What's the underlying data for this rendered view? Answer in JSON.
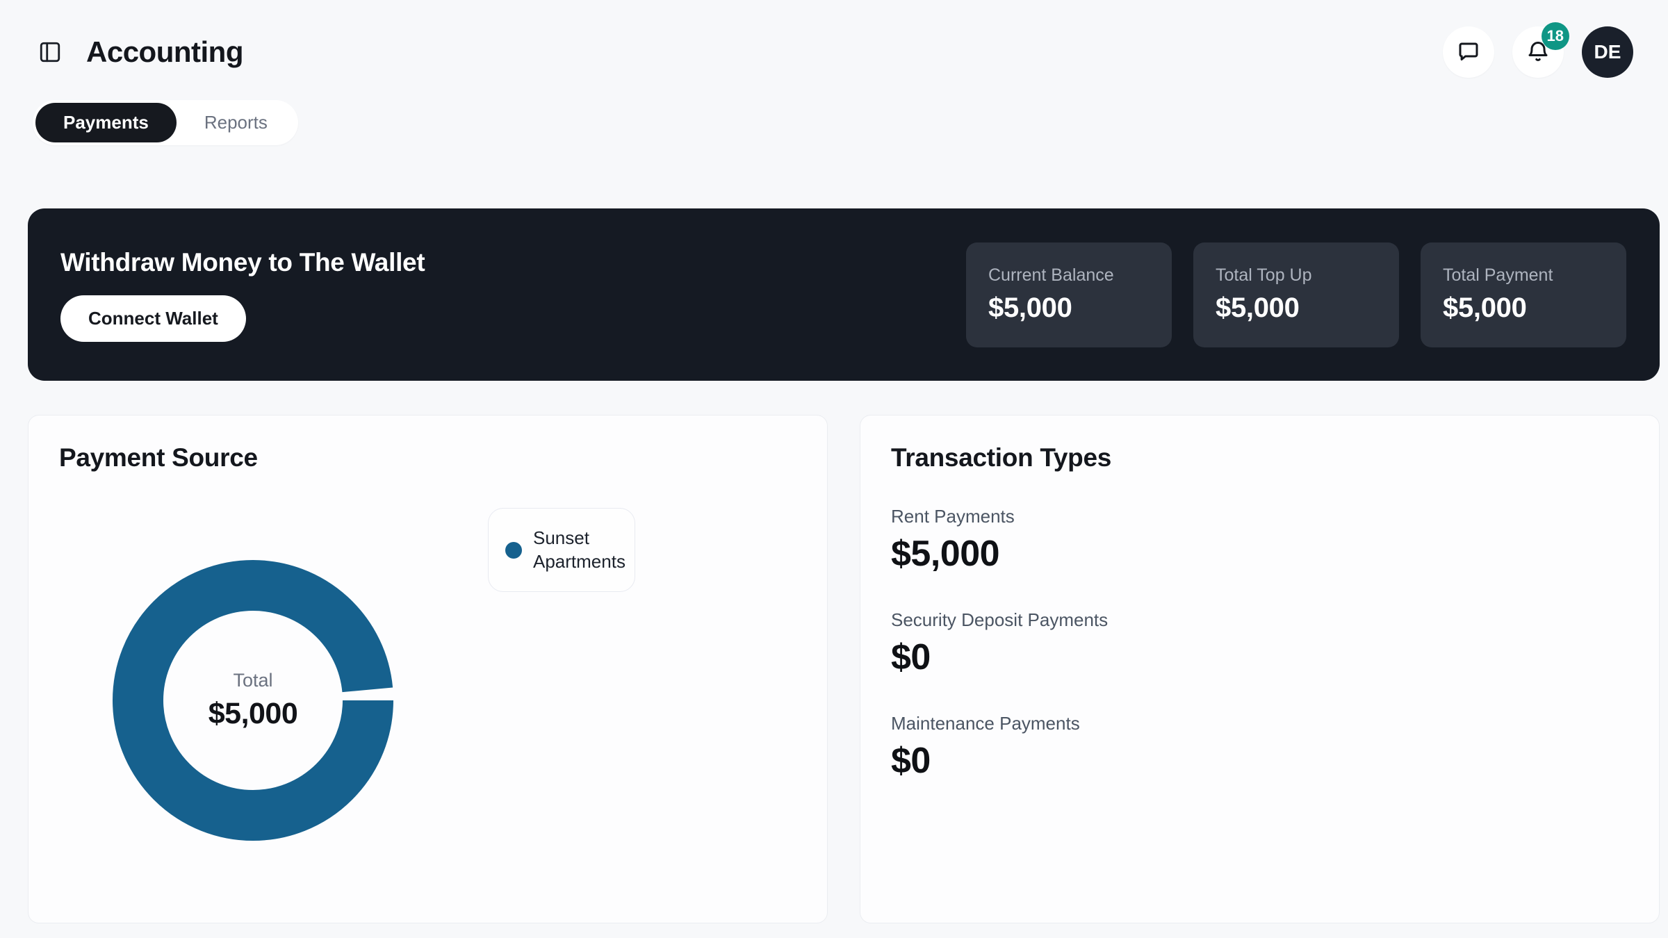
{
  "header": {
    "title": "Accounting",
    "notification_count": "18",
    "avatar_initials": "DE"
  },
  "icons": {
    "sidebar_toggle": "panel-left",
    "chat": "speech-bubble",
    "notifications": "bell"
  },
  "tabs": {
    "items": [
      {
        "label": "Payments",
        "active": true
      },
      {
        "label": "Reports",
        "active": false
      }
    ]
  },
  "banner": {
    "title": "Withdraw Money to The Wallet",
    "connect_button_label": "Connect Wallet",
    "stats": [
      {
        "label": "Current Balance",
        "value": "$5,000"
      },
      {
        "label": "Total Top Up",
        "value": "$5,000"
      },
      {
        "label": "Total Payment",
        "value": "$5,000"
      }
    ]
  },
  "payment_source": {
    "title": "Payment Source",
    "center_label": "Total",
    "center_value": "$5,000",
    "legend": [
      {
        "label": "Sunset Apartments",
        "color": "#16618e"
      }
    ]
  },
  "chart_data": {
    "type": "pie",
    "donut": true,
    "title": "Payment Source",
    "labels": [
      "Sunset Apartments"
    ],
    "values": [
      5000
    ],
    "colors": [
      "#16618e"
    ],
    "total_label": "Total",
    "total_value": "$5,000",
    "gap_fraction": 0.015,
    "legend_position": "right"
  },
  "transaction_types": {
    "title": "Transaction Types",
    "items": [
      {
        "label": "Rent Payments",
        "value": "$5,000"
      },
      {
        "label": "Security Deposit Payments",
        "value": "$0"
      },
      {
        "label": "Maintenance Payments",
        "value": "$0"
      }
    ]
  },
  "colors": {
    "accent_blue": "#16618e",
    "badge_teal": "#0f9685",
    "banner_dark": "#151a23",
    "stat_card_dark": "#2c323d"
  }
}
